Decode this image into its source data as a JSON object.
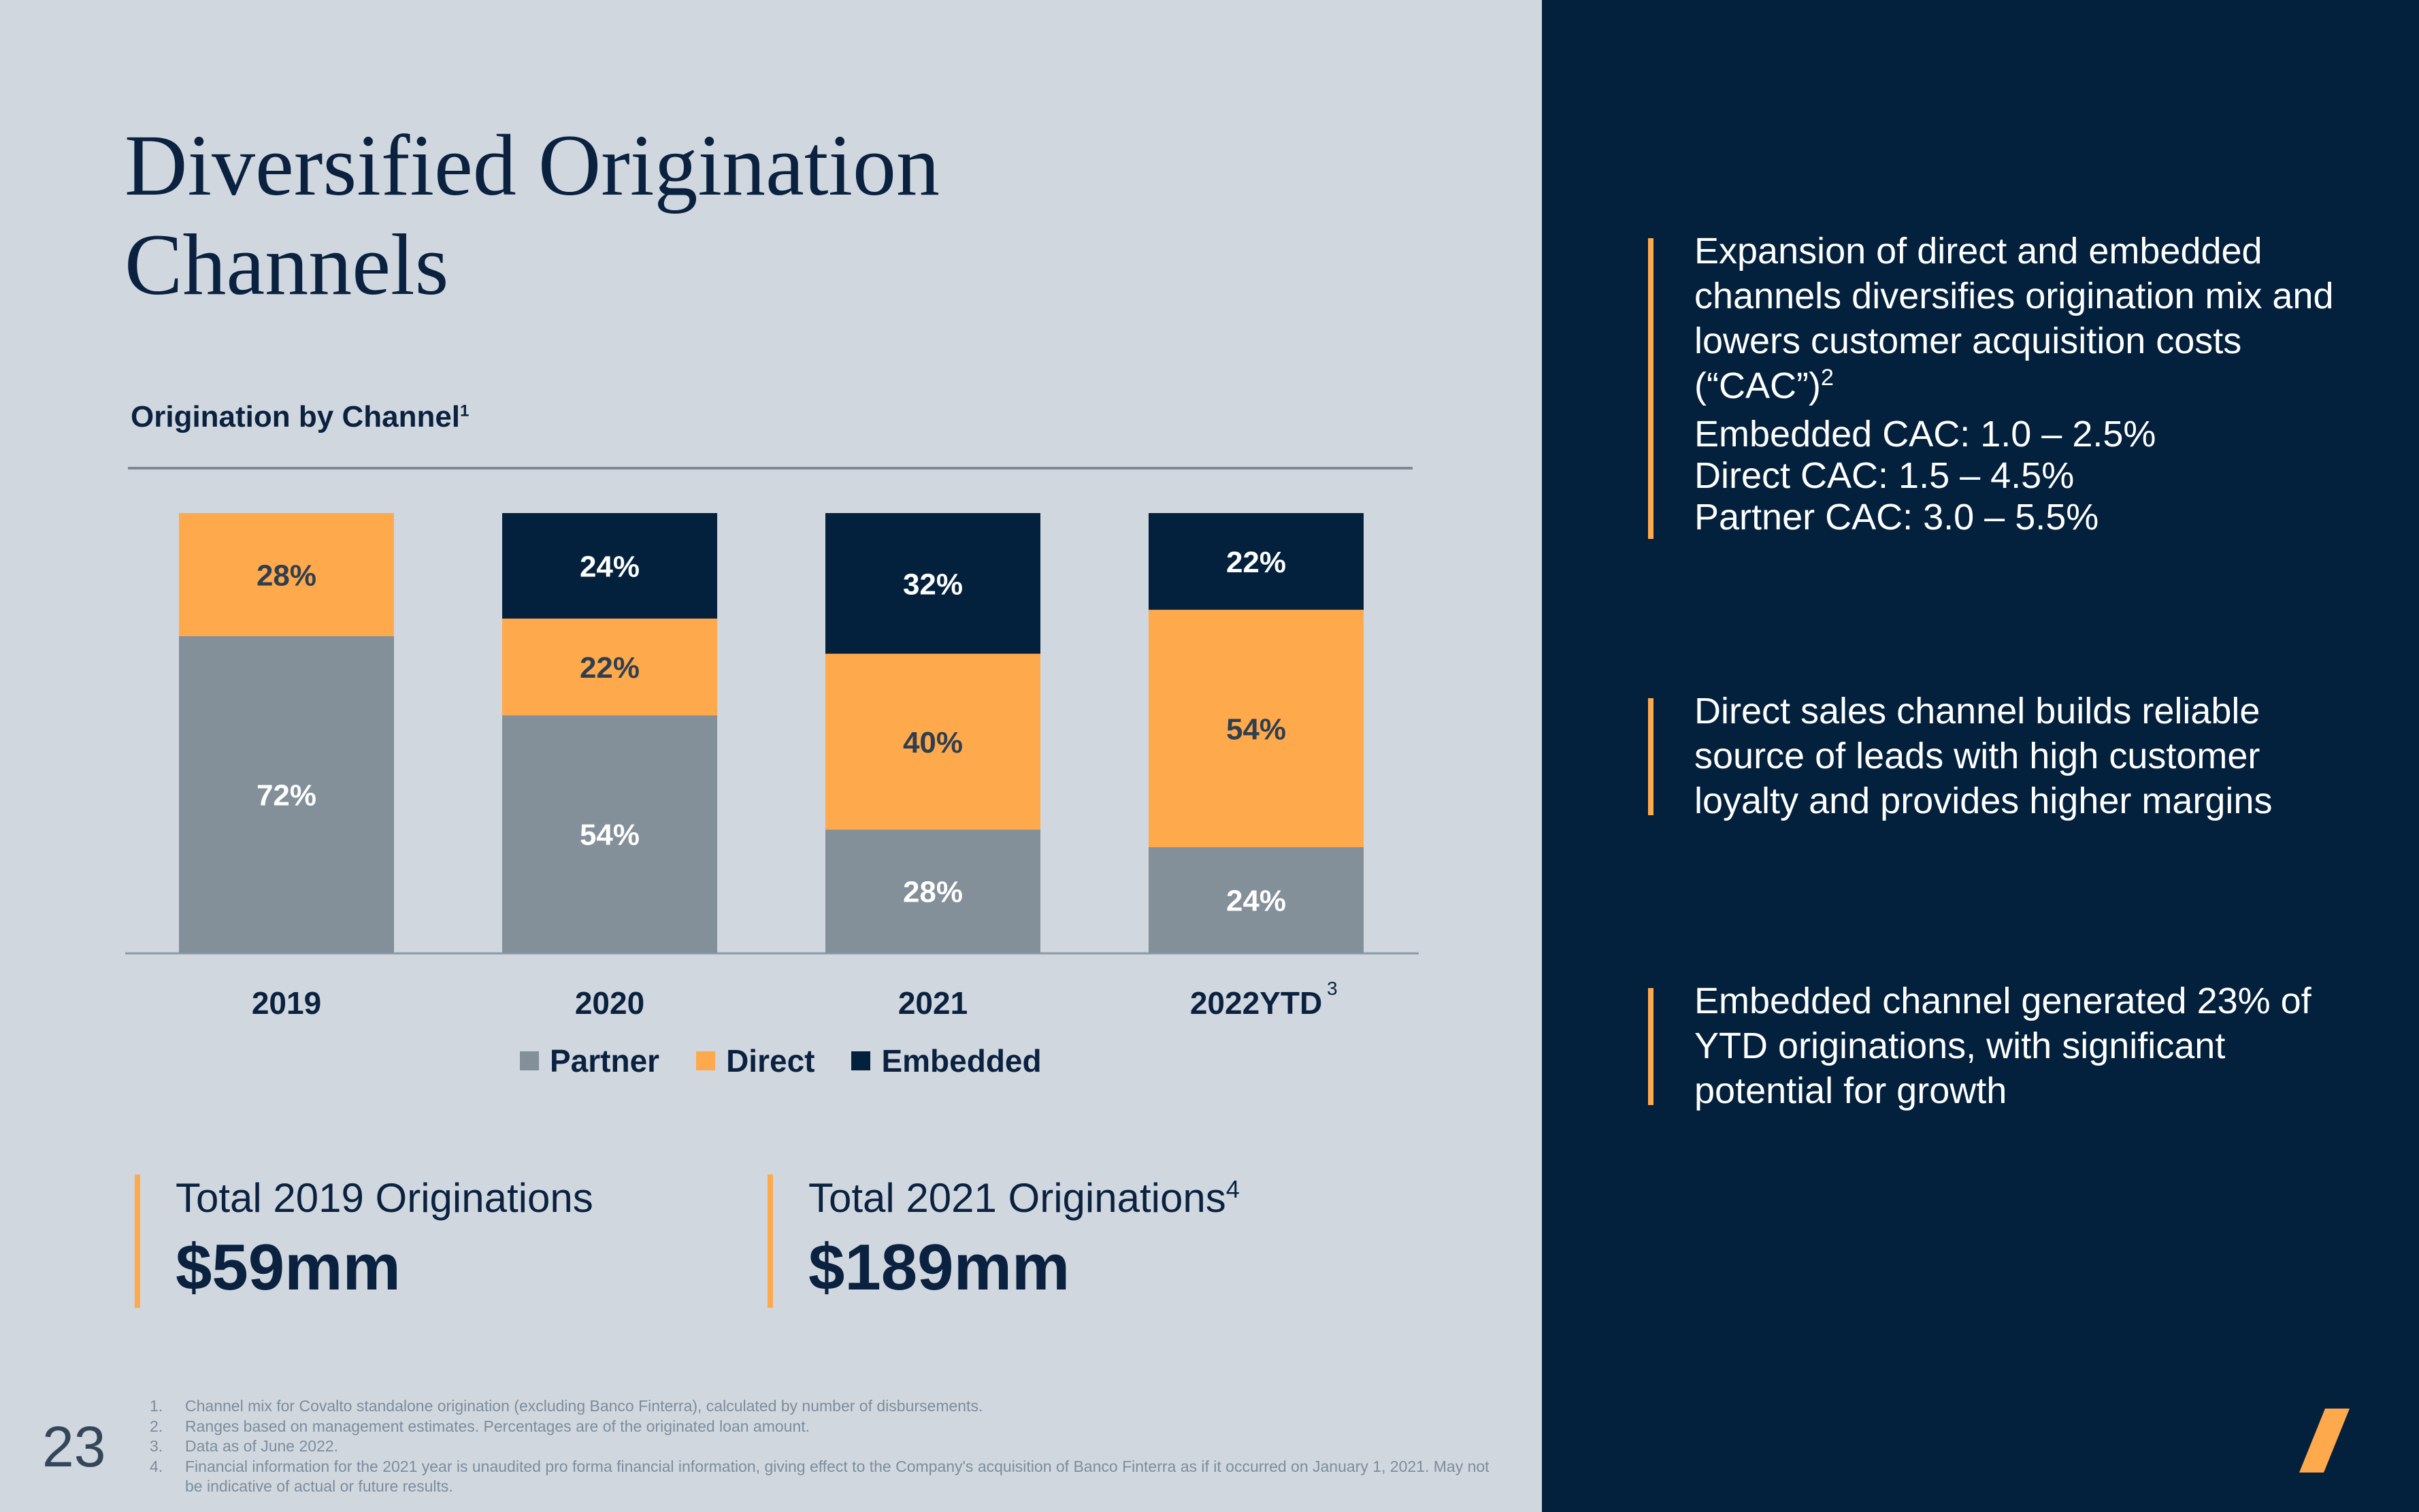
{
  "page_number": "23",
  "title_lines": [
    "Diversified Origination",
    "Channels"
  ],
  "chart_heading": {
    "text": "Origination by Channel",
    "footnote": "1"
  },
  "chart_data": {
    "type": "bar",
    "stacked": true,
    "percent_stacked": true,
    "title": "Origination by Channel",
    "categories": [
      "2019",
      "2020",
      "2021",
      "2022YTD"
    ],
    "category_superscripts": [
      "",
      "",
      "",
      "3"
    ],
    "ylim": [
      0,
      100
    ],
    "series": [
      {
        "name": "Partner",
        "color": "#838f99",
        "values": [
          72,
          54,
          28,
          24
        ]
      },
      {
        "name": "Direct",
        "color": "#ffa94d",
        "values": [
          28,
          22,
          40,
          54
        ]
      },
      {
        "name": "Embedded",
        "color": "#03213d",
        "values": [
          0,
          24,
          32,
          22
        ]
      }
    ],
    "value_label_colors": {
      "Partner": "#ffffff",
      "Direct": "#2f3f50",
      "Embedded": "#ffffff"
    },
    "legend": [
      "Partner",
      "Direct",
      "Embedded"
    ],
    "legend_position": "bottom"
  },
  "stats": [
    {
      "label": "Total 2019 Originations",
      "footnote": "",
      "value": "$59mm"
    },
    {
      "label": "Total 2021 Originations",
      "footnote": "4",
      "value": "$189mm"
    }
  ],
  "right_points": [
    {
      "text": "Expansion of direct and embedded channels diversifies origination mix and lowers customer acquisition costs (“CAC”)",
      "footnote": "2",
      "cac_lines": [
        "Embedded CAC: 1.0 – 2.5%",
        "Direct CAC: 1.5 – 4.5%",
        "Partner CAC: 3.0 – 5.5%"
      ]
    },
    {
      "text": "Direct sales channel builds reliable source of leads with high customer loyalty and provides higher margins",
      "footnote": "",
      "cac_lines": []
    },
    {
      "text": "Embedded channel generated 23% of YTD originations, with significant potential for growth",
      "footnote": "",
      "cac_lines": []
    }
  ],
  "footnotes": [
    {
      "num": "1.",
      "text": "Channel mix for Covalto standalone origination (excluding Banco Finterra), calculated by number of disbursements."
    },
    {
      "num": "2.",
      "text": "Ranges based on management estimates. Percentages are of the originated loan amount."
    },
    {
      "num": "3.",
      "text": "Data as of June 2022."
    },
    {
      "num": "4.",
      "text": "Financial information for the 2021 year is unaudited pro forma financial information, giving effect to the Company's acquisition of Banco Finterra as if it occurred on January 1, 2021. May not be indicative of actual or future results."
    }
  ],
  "colors": {
    "left_background": "#d0d7df",
    "right_background": "#03213d",
    "accent": "#ffa94d",
    "heading": "#0a2240"
  }
}
